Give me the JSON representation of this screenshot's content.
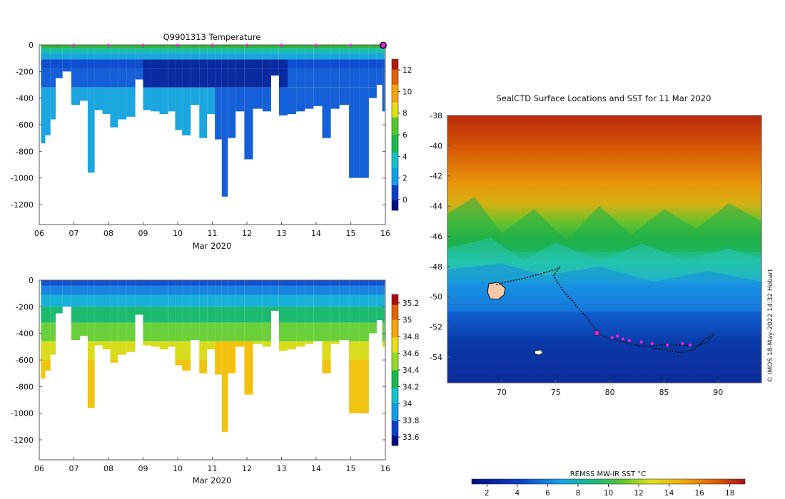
{
  "chart_data": [
    {
      "type": "heatmap",
      "title": "Q9901313  Temperature",
      "xlabel": "Mar 2020",
      "ylabel": "",
      "x_ticks": [
        "06",
        "07",
        "08",
        "09",
        "10",
        "11",
        "12",
        "13",
        "14",
        "15",
        "16"
      ],
      "xlim": [
        6,
        16
      ],
      "ylim": [
        -1350,
        0
      ],
      "y_ticks": [
        0,
        -200,
        -400,
        -600,
        -800,
        -1000,
        -1200
      ],
      "surface_marker_days": [
        7,
        8,
        9,
        10,
        11,
        12,
        13,
        14,
        15
      ],
      "current_marker_day": 16,
      "profiles": [
        {
          "t": 6.1,
          "depth": 740
        },
        {
          "t": 6.25,
          "depth": 680
        },
        {
          "t": 6.4,
          "depth": 560
        },
        {
          "t": 6.55,
          "depth": 250
        },
        {
          "t": 6.8,
          "depth": 200
        },
        {
          "t": 7.05,
          "depth": 450
        },
        {
          "t": 7.3,
          "depth": 420
        },
        {
          "t": 7.5,
          "depth": 960
        },
        {
          "t": 7.7,
          "depth": 490
        },
        {
          "t": 7.95,
          "depth": 520
        },
        {
          "t": 8.15,
          "depth": 620
        },
        {
          "t": 8.4,
          "depth": 560
        },
        {
          "t": 8.65,
          "depth": 540
        },
        {
          "t": 8.9,
          "depth": 260
        },
        {
          "t": 9.1,
          "depth": 490
        },
        {
          "t": 9.35,
          "depth": 500
        },
        {
          "t": 9.6,
          "depth": 520
        },
        {
          "t": 9.85,
          "depth": 500
        },
        {
          "t": 10.0,
          "depth": 640
        },
        {
          "t": 10.25,
          "depth": 680
        },
        {
          "t": 10.5,
          "depth": 450
        },
        {
          "t": 10.75,
          "depth": 700
        },
        {
          "t": 10.95,
          "depth": 520
        },
        {
          "t": 11.2,
          "depth": 710
        },
        {
          "t": 11.35,
          "depth": 1140
        },
        {
          "t": 11.55,
          "depth": 700
        },
        {
          "t": 11.8,
          "depth": 500
        },
        {
          "t": 12.05,
          "depth": 860
        },
        {
          "t": 12.3,
          "depth": 480
        },
        {
          "t": 12.6,
          "depth": 500
        },
        {
          "t": 12.8,
          "depth": 230
        },
        {
          "t": 13.05,
          "depth": 530
        },
        {
          "t": 13.3,
          "depth": 520
        },
        {
          "t": 13.55,
          "depth": 500
        },
        {
          "t": 13.8,
          "depth": 480
        },
        {
          "t": 14.05,
          "depth": 460
        },
        {
          "t": 14.3,
          "depth": 700
        },
        {
          "t": 14.55,
          "depth": 480
        },
        {
          "t": 14.8,
          "depth": 450
        },
        {
          "t": 15.1,
          "depth": 1000
        },
        {
          "t": 15.4,
          "depth": 1000
        },
        {
          "t": 15.65,
          "depth": 400
        },
        {
          "t": 15.85,
          "depth": 300
        },
        {
          "t": 15.97,
          "depth": 500
        }
      ],
      "colorbar": {
        "min": -1,
        "max": 13,
        "ticks": [
          0,
          2,
          4,
          6,
          8,
          10,
          12
        ]
      }
    },
    {
      "type": "heatmap",
      "title": "",
      "xlabel": "Mar 2020",
      "ylabel": "",
      "x_ticks": [
        "06",
        "07",
        "08",
        "09",
        "10",
        "11",
        "12",
        "13",
        "14",
        "15",
        "16"
      ],
      "xlim": [
        6,
        16
      ],
      "ylim": [
        -1350,
        0
      ],
      "y_ticks": [
        0,
        -200,
        -400,
        -600,
        -800,
        -1000,
        -1200
      ],
      "colorbar": {
        "min": 33.5,
        "max": 35.3,
        "ticks": [
          33.6,
          33.8,
          34,
          34.2,
          34.4,
          34.6,
          34.8,
          35,
          35.2
        ]
      }
    },
    {
      "type": "heatmap",
      "title": "SealCTD Surface Locations and SST for 11 Mar 2020",
      "xlabel": "",
      "ylabel": "",
      "xlim": [
        65,
        94
      ],
      "ylim": [
        -55.7,
        -38
      ],
      "x_ticks": [
        70,
        75,
        80,
        85,
        90
      ],
      "y_ticks": [
        -38,
        -40,
        -42,
        -44,
        -46,
        -48,
        -50,
        -52,
        -54
      ],
      "colorbar": {
        "label": "REMSS MW-IR SST °C",
        "min": 1,
        "max": 19,
        "ticks": [
          2,
          4,
          6,
          8,
          10,
          12,
          14,
          16,
          18
        ]
      },
      "track": [
        [
          69.5,
          -49.2
        ],
        [
          70.5,
          -49.0
        ],
        [
          72.0,
          -48.8
        ],
        [
          73.5,
          -48.5
        ],
        [
          75.0,
          -48.2
        ],
        [
          75.4,
          -48.0
        ],
        [
          74.8,
          -48.6
        ],
        [
          75.2,
          -49.1
        ],
        [
          75.9,
          -49.8
        ],
        [
          76.6,
          -50.3
        ],
        [
          77.1,
          -50.8
        ],
        [
          77.8,
          -51.3
        ],
        [
          78.4,
          -51.9
        ],
        [
          78.9,
          -52.4
        ],
        [
          79.6,
          -52.7
        ],
        [
          80.5,
          -52.8
        ],
        [
          81.3,
          -53.0
        ],
        [
          82.3,
          -53.2
        ],
        [
          83.5,
          -53.3
        ],
        [
          84.5,
          -53.2
        ],
        [
          85.5,
          -53.2
        ],
        [
          86.8,
          -53.2
        ],
        [
          88.0,
          -53.3
        ],
        [
          89.0,
          -53.0
        ],
        [
          89.6,
          -52.5
        ],
        [
          88.8,
          -52.8
        ],
        [
          87.8,
          -53.5
        ],
        [
          86.5,
          -53.7
        ],
        [
          85.0,
          -53.5
        ],
        [
          83.8,
          -53.4
        ]
      ],
      "surface_positions": [
        [
          80.2,
          -52.7
        ],
        [
          80.7,
          -52.6
        ],
        [
          81.2,
          -52.8
        ],
        [
          81.8,
          -52.9
        ],
        [
          82.9,
          -53.0
        ],
        [
          83.9,
          -53.1
        ],
        [
          85.3,
          -53.2
        ],
        [
          86.7,
          -53.1
        ],
        [
          87.4,
          -53.2
        ]
      ],
      "current_position": [
        78.8,
        -52.4
      ],
      "credit": "© IMOS 18-May-2022 14:32 Hobart"
    }
  ]
}
